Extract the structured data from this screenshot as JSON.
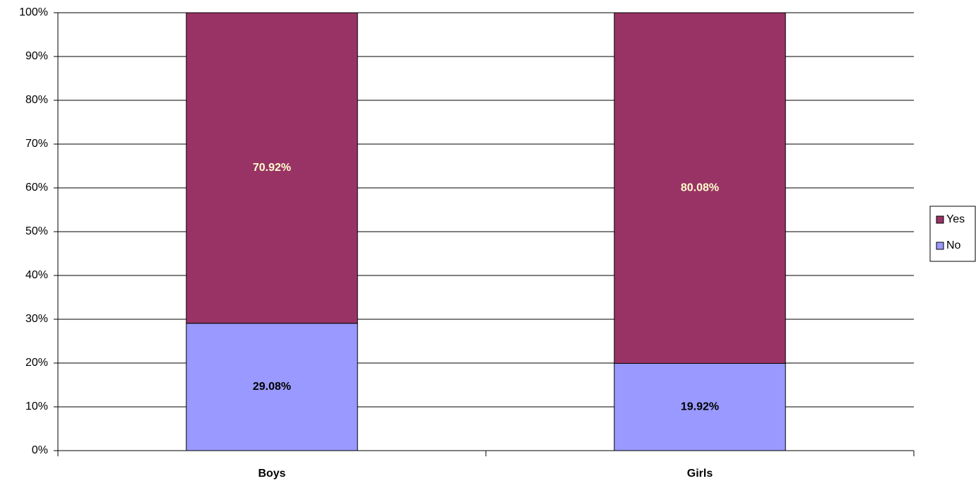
{
  "chart_data": {
    "type": "stacked_bar",
    "categories": [
      "Boys",
      "Girls"
    ],
    "series": [
      {
        "name": "No",
        "color": "#9999ff",
        "label_color": "#000000",
        "values": [
          29.08,
          19.92
        ],
        "value_labels": [
          "29.08%",
          "19.92%"
        ]
      },
      {
        "name": "Yes",
        "color": "#993366",
        "label_color": "#ffffcc",
        "values": [
          70.92,
          80.08
        ],
        "value_labels": [
          "70.92%",
          "80.08%"
        ]
      }
    ],
    "ylim": [
      0,
      100
    ],
    "yticks": [
      {
        "value": 0,
        "label": "0%"
      },
      {
        "value": 10,
        "label": "10%"
      },
      {
        "value": 20,
        "label": "20%"
      },
      {
        "value": 30,
        "label": "30%"
      },
      {
        "value": 40,
        "label": "40%"
      },
      {
        "value": 50,
        "label": "50%"
      },
      {
        "value": 60,
        "label": "60%"
      },
      {
        "value": 70,
        "label": "70%"
      },
      {
        "value": 80,
        "label": "80%"
      },
      {
        "value": 90,
        "label": "90%"
      },
      {
        "value": 100,
        "label": "100%"
      }
    ],
    "grid": true,
    "legend": "right"
  }
}
